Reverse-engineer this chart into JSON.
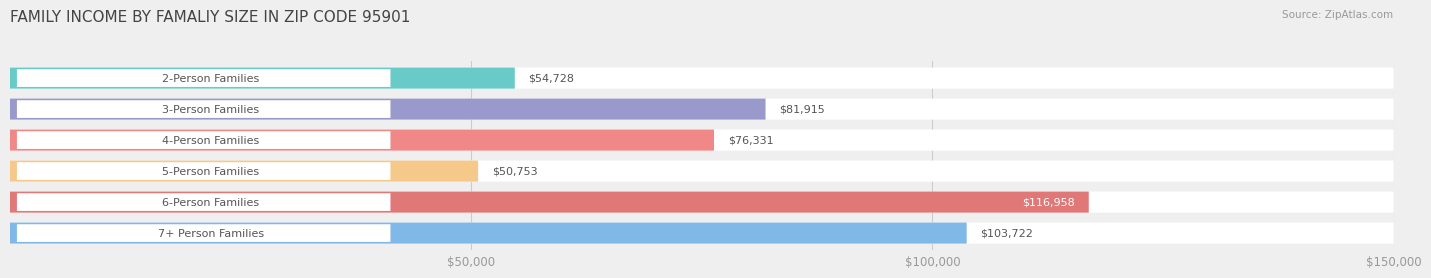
{
  "title": "FAMILY INCOME BY FAMALIY SIZE IN ZIP CODE 95901",
  "source": "Source: ZipAtlas.com",
  "categories": [
    "2-Person Families",
    "3-Person Families",
    "4-Person Families",
    "5-Person Families",
    "6-Person Families",
    "7+ Person Families"
  ],
  "values": [
    54728,
    81915,
    76331,
    50753,
    116958,
    103722
  ],
  "bar_colors": [
    "#68cbc8",
    "#9999cc",
    "#f08888",
    "#f5c98a",
    "#e07878",
    "#80b8e8"
  ],
  "value_labels": [
    "$54,728",
    "$81,915",
    "$76,331",
    "$50,753",
    "$116,958",
    "$103,722"
  ],
  "value_inside": [
    false,
    false,
    false,
    false,
    true,
    false
  ],
  "xlim_max": 150000,
  "xtick_vals": [
    50000,
    100000,
    150000
  ],
  "xtick_labels": [
    "$50,000",
    "$100,000",
    "$150,000"
  ],
  "background_color": "#efefef",
  "title_fontsize": 11,
  "tick_fontsize": 8.5,
  "cat_label_fontsize": 8.0,
  "value_fontsize": 8.0
}
